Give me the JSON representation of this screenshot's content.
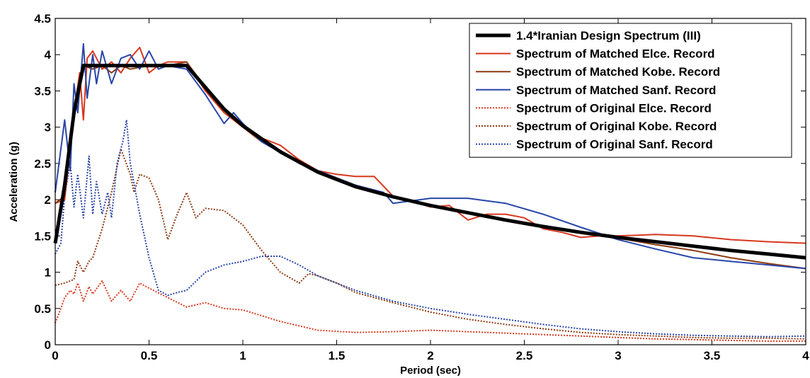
{
  "chart_data": {
    "type": "line",
    "title": "",
    "xlabel": "Period (sec)",
    "ylabel": "Acceleration (g)",
    "xlim": [
      0,
      4
    ],
    "ylim": [
      0,
      4.5
    ],
    "xticks": [
      0,
      0.5,
      1,
      1.5,
      2,
      2.5,
      3,
      3.5,
      4
    ],
    "xtick_labels": [
      "0",
      "0.5",
      "1",
      "1.5",
      "2",
      "2.5",
      "3",
      "3.5",
      "4"
    ],
    "yticks": [
      0,
      0.5,
      1,
      1.5,
      2,
      2.5,
      3,
      3.5,
      4,
      4.5
    ],
    "ytick_labels": [
      "0",
      "0.5",
      "1",
      "1.5",
      "2",
      "2.5",
      "3",
      "3.5",
      "4",
      "4.5"
    ],
    "grid": false,
    "legend_position": "top-right",
    "series": [
      {
        "name": "1.4*Iranian Design Spectrum (III)",
        "color": "#000000",
        "style": "solid",
        "width": "thick",
        "x": [
          0,
          0.05,
          0.1,
          0.15,
          0.2,
          0.3,
          0.4,
          0.5,
          0.6,
          0.7,
          0.8,
          0.9,
          1.0,
          1.2,
          1.4,
          1.6,
          1.8,
          2.0,
          2.2,
          2.4,
          2.6,
          2.8,
          3.0,
          3.2,
          3.4,
          3.6,
          3.8,
          4.0
        ],
        "y": [
          1.4,
          2.2,
          3.2,
          3.85,
          3.85,
          3.85,
          3.85,
          3.85,
          3.85,
          3.85,
          3.55,
          3.25,
          3.02,
          2.66,
          2.38,
          2.18,
          2.04,
          1.92,
          1.82,
          1.72,
          1.63,
          1.55,
          1.48,
          1.42,
          1.36,
          1.3,
          1.25,
          1.2
        ]
      },
      {
        "name": "Spectrum of Matched Elce. Record",
        "color": "#d7381e",
        "style": "solid",
        "width": "normal",
        "x": [
          0,
          0.05,
          0.1,
          0.13,
          0.15,
          0.17,
          0.2,
          0.25,
          0.3,
          0.35,
          0.4,
          0.45,
          0.5,
          0.55,
          0.6,
          0.7,
          0.8,
          0.9,
          1.0,
          1.1,
          1.2,
          1.3,
          1.4,
          1.5,
          1.6,
          1.7,
          1.8,
          1.9,
          2.0,
          2.1,
          2.2,
          2.3,
          2.4,
          2.5,
          2.6,
          2.7,
          2.8,
          2.9,
          3.0,
          3.2,
          3.4,
          3.6,
          3.8,
          4.0
        ],
        "y": [
          1.95,
          2.0,
          3.2,
          3.75,
          3.1,
          3.95,
          4.05,
          3.8,
          3.9,
          3.75,
          3.95,
          4.1,
          3.75,
          3.85,
          3.9,
          3.9,
          3.5,
          3.2,
          3.0,
          2.85,
          2.75,
          2.55,
          2.4,
          2.35,
          2.32,
          2.32,
          2.05,
          1.98,
          1.9,
          1.92,
          1.72,
          1.8,
          1.8,
          1.75,
          1.6,
          1.55,
          1.48,
          1.5,
          1.5,
          1.52,
          1.5,
          1.45,
          1.42,
          1.4
        ]
      },
      {
        "name": "Spectrum of Matched Kobe. Record",
        "color": "#8b3b12",
        "style": "solid",
        "width": "normal",
        "x": [
          0,
          0.05,
          0.1,
          0.15,
          0.2,
          0.25,
          0.3,
          0.35,
          0.4,
          0.5,
          0.6,
          0.7,
          0.8,
          0.9,
          1.0,
          1.1,
          1.2,
          1.3,
          1.4,
          1.6,
          1.8,
          2.0,
          2.2,
          2.4,
          2.6,
          2.8,
          3.0,
          3.2,
          3.4,
          3.6,
          3.8,
          4.0
        ],
        "y": [
          1.95,
          2.05,
          3.3,
          3.85,
          3.8,
          3.85,
          3.75,
          3.85,
          3.8,
          3.85,
          3.85,
          3.9,
          3.55,
          3.25,
          3.0,
          2.8,
          2.68,
          2.5,
          2.4,
          2.2,
          2.05,
          1.92,
          1.82,
          1.72,
          1.63,
          1.55,
          1.47,
          1.38,
          1.3,
          1.2,
          1.12,
          1.05
        ]
      },
      {
        "name": "Spectrum of Matched Sanf. Record",
        "color": "#2a46a8",
        "style": "solid",
        "width": "normal",
        "x": [
          0,
          0.05,
          0.08,
          0.1,
          0.12,
          0.15,
          0.17,
          0.2,
          0.22,
          0.25,
          0.3,
          0.35,
          0.4,
          0.45,
          0.5,
          0.55,
          0.6,
          0.7,
          0.8,
          0.9,
          0.95,
          1.0,
          1.1,
          1.2,
          1.4,
          1.6,
          1.75,
          1.8,
          2.0,
          2.2,
          2.4,
          2.6,
          2.8,
          3.0,
          3.2,
          3.4,
          3.6,
          3.8,
          4.0
        ],
        "y": [
          2.1,
          3.1,
          2.4,
          3.6,
          3.2,
          4.15,
          3.4,
          4.0,
          3.6,
          4.05,
          3.6,
          3.95,
          4.0,
          3.8,
          4.05,
          3.8,
          3.85,
          3.8,
          3.45,
          3.05,
          3.2,
          3.05,
          2.8,
          2.65,
          2.4,
          2.2,
          2.1,
          1.95,
          2.02,
          2.02,
          1.95,
          1.8,
          1.62,
          1.45,
          1.32,
          1.2,
          1.15,
          1.1,
          1.05
        ]
      },
      {
        "name": "Spectrum of Original Elce. Record",
        "color": "#d7381e",
        "style": "dotted",
        "width": "normal",
        "x": [
          0,
          0.03,
          0.05,
          0.08,
          0.1,
          0.12,
          0.15,
          0.18,
          0.2,
          0.25,
          0.3,
          0.35,
          0.4,
          0.45,
          0.5,
          0.6,
          0.7,
          0.8,
          0.9,
          1.0,
          1.1,
          1.2,
          1.4,
          1.6,
          1.8,
          2.0,
          2.2,
          2.4,
          2.6,
          2.8,
          3.0,
          3.2,
          3.4,
          3.6,
          3.8,
          4.0
        ],
        "y": [
          0.3,
          0.5,
          0.65,
          0.75,
          0.7,
          0.85,
          0.6,
          0.8,
          0.7,
          0.88,
          0.6,
          0.75,
          0.6,
          0.85,
          0.78,
          0.65,
          0.52,
          0.58,
          0.5,
          0.48,
          0.4,
          0.32,
          0.2,
          0.17,
          0.18,
          0.2,
          0.18,
          0.16,
          0.14,
          0.12,
          0.1,
          0.08,
          0.07,
          0.06,
          0.05,
          0.05
        ]
      },
      {
        "name": "Spectrum of Original Kobe. Record",
        "color": "#8b3b12",
        "style": "dotted",
        "width": "normal",
        "x": [
          0,
          0.05,
          0.1,
          0.12,
          0.15,
          0.18,
          0.2,
          0.25,
          0.3,
          0.35,
          0.4,
          0.42,
          0.45,
          0.5,
          0.55,
          0.6,
          0.65,
          0.7,
          0.75,
          0.8,
          0.9,
          1.0,
          1.1,
          1.2,
          1.3,
          1.35,
          1.4,
          1.5,
          1.6,
          1.8,
          2.0,
          2.2,
          2.4,
          2.6,
          2.8,
          3.0,
          3.2,
          3.4,
          3.6,
          3.8,
          4.0
        ],
        "y": [
          0.82,
          0.85,
          0.9,
          1.15,
          1.0,
          1.15,
          1.2,
          1.6,
          2.1,
          2.7,
          2.35,
          2.1,
          2.35,
          2.3,
          2.0,
          1.45,
          1.8,
          2.1,
          1.75,
          1.88,
          1.85,
          1.65,
          1.3,
          1.0,
          0.85,
          0.98,
          0.95,
          0.85,
          0.72,
          0.58,
          0.45,
          0.35,
          0.28,
          0.22,
          0.17,
          0.14,
          0.12,
          0.1,
          0.09,
          0.09,
          0.08
        ]
      },
      {
        "name": "Spectrum of Original Sanf. Record",
        "color": "#2a46a8",
        "style": "dotted",
        "width": "normal",
        "x": [
          0,
          0.03,
          0.05,
          0.08,
          0.1,
          0.12,
          0.15,
          0.18,
          0.2,
          0.22,
          0.25,
          0.28,
          0.3,
          0.33,
          0.36,
          0.38,
          0.4,
          0.45,
          0.5,
          0.55,
          0.6,
          0.65,
          0.7,
          0.8,
          0.9,
          1.0,
          1.1,
          1.2,
          1.3,
          1.4,
          1.6,
          1.8,
          2.0,
          2.2,
          2.4,
          2.6,
          2.8,
          3.0,
          3.2,
          3.4,
          3.6,
          3.8,
          4.0
        ],
        "y": [
          1.25,
          1.4,
          2.05,
          2.5,
          1.9,
          2.35,
          1.75,
          2.6,
          1.8,
          2.25,
          1.8,
          2.1,
          1.75,
          2.5,
          2.8,
          3.1,
          2.5,
          1.8,
          1.2,
          0.75,
          0.68,
          0.72,
          0.75,
          1.0,
          1.1,
          1.15,
          1.22,
          1.22,
          1.1,
          0.95,
          0.75,
          0.6,
          0.5,
          0.42,
          0.35,
          0.28,
          0.22,
          0.18,
          0.15,
          0.13,
          0.12,
          0.11,
          0.12
        ]
      }
    ]
  }
}
